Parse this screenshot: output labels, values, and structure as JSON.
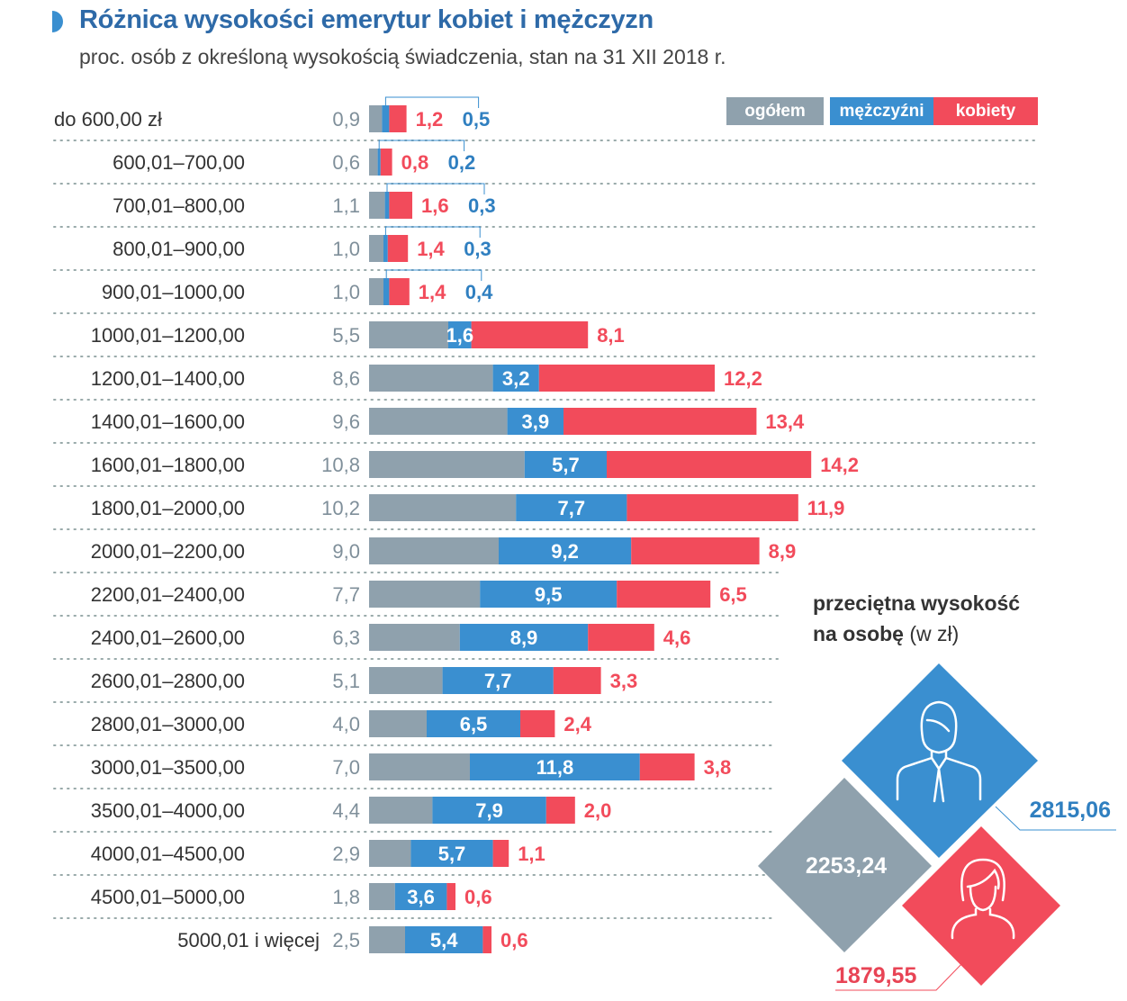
{
  "header": {
    "title": "Różnica wysokości emerytur kobiet i mężczyzn",
    "subtitle": "proc. osób z określoną wysokością świadczenia, stan na 31 XII 2018 r."
  },
  "colors": {
    "ogolem": "#8fa1ad",
    "mezczyzni": "#3a8fd0",
    "kobiety": "#f24b5b",
    "title": "#2e6aa8"
  },
  "legend": [
    {
      "label": "ogółem",
      "color": "#8fa1ad"
    },
    {
      "label": "mężczyźni",
      "color": "#3a8fd0"
    },
    {
      "label": "kobiety",
      "color": "#f24b5b"
    }
  ],
  "chart_data": {
    "type": "bar",
    "orientation": "horizontal",
    "stacked_display": true,
    "categories": [
      "do 600,00 zł",
      "600,01–700,00",
      "700,01–800,00",
      "800,01–900,00",
      "900,01–1000,00",
      "1000,01–1200,00",
      "1200,01–1400,00",
      "1400,01–1600,00",
      "1600,01–1800,00",
      "1800,01–2000,00",
      "2000,01–2200,00",
      "2200,01–2400,00",
      "2400,01–2600,00",
      "2600,01–2800,00",
      "2800,01–3000,00",
      "3000,01–3500,00",
      "3500,01–4000,00",
      "4000,01–4500,00",
      "4500,01–5000,00",
      "5000,01 i więcej"
    ],
    "series": [
      {
        "name": "ogółem",
        "values": [
          0.9,
          0.6,
          1.1,
          1.0,
          1.0,
          5.5,
          8.6,
          9.6,
          10.8,
          10.2,
          9.0,
          7.7,
          6.3,
          5.1,
          4.0,
          7.0,
          4.4,
          2.9,
          1.8,
          2.5
        ]
      },
      {
        "name": "mężczyźni",
        "values": [
          0.5,
          0.2,
          0.3,
          0.3,
          0.4,
          1.6,
          3.2,
          3.9,
          5.7,
          7.7,
          9.2,
          9.5,
          8.9,
          7.7,
          6.5,
          11.8,
          7.9,
          5.7,
          3.6,
          5.4
        ]
      },
      {
        "name": "kobiety",
        "values": [
          1.2,
          0.8,
          1.6,
          1.4,
          1.4,
          8.1,
          12.2,
          13.4,
          14.2,
          11.9,
          8.9,
          6.5,
          4.6,
          3.3,
          2.4,
          3.8,
          2.0,
          1.1,
          0.6,
          0.6
        ]
      }
    ],
    "value_labels": {
      "ogółem": [
        "0,9",
        "0,6",
        "1,1",
        "1,0",
        "1,0",
        "5,5",
        "8,6",
        "9,6",
        "10,8",
        "10,2",
        "9,0",
        "7,7",
        "6,3",
        "5,1",
        "4,0",
        "7,0",
        "4,4",
        "2,9",
        "1,8",
        "2,5"
      ],
      "mężczyźni": [
        "0,5",
        "0,2",
        "0,3",
        "0,3",
        "0,4",
        "1,6",
        "3,2",
        "3,9",
        "5,7",
        "7,7",
        "9,2",
        "9,5",
        "8,9",
        "7,7",
        "6,5",
        "11,8",
        "7,9",
        "5,7",
        "3,6",
        "5,4"
      ],
      "kobiety": [
        "1,2",
        "0,8",
        "1,6",
        "1,4",
        "1,4",
        "8,1",
        "12,2",
        "13,4",
        "14,2",
        "11,9",
        "8,9",
        "6,5",
        "4,6",
        "3,3",
        "2,4",
        "3,8",
        "2,0",
        "1,1",
        "0,6",
        "0,6"
      ]
    },
    "title": "Różnica wysokości emerytur kobiet i mężczyzn",
    "legend_position": "top-right",
    "grid": false
  },
  "average": {
    "title_bold": "przeciętna wysokość",
    "title_bold2": "na osobę",
    "title_unit": "(w zł)",
    "ogolem": "2253,24",
    "mezczyzni": "2815,06",
    "kobiety": "1879,55",
    "icons": [
      "man-icon",
      "woman-icon"
    ]
  }
}
